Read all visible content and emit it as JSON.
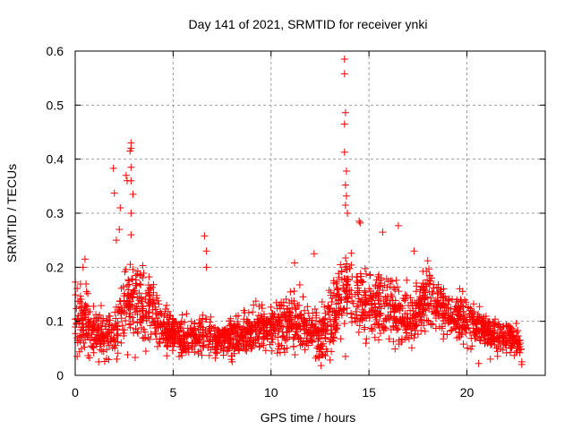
{
  "chart_data": {
    "type": "scatter",
    "title": "Day 141 of 2021, SRMTID for receiver ynki",
    "xlabel": "GPS time / hours",
    "ylabel": "SRMTID / TECUs",
    "xlim": [
      0,
      24
    ],
    "ylim": [
      0,
      0.6
    ],
    "xticks": [
      0,
      5,
      10,
      15,
      20
    ],
    "xtick_labels": [
      "0",
      "5",
      "10",
      "15",
      "20"
    ],
    "yticks": [
      0,
      0.1,
      0.2,
      0.3,
      0.4,
      0.5,
      0.6
    ],
    "ytick_labels": [
      "0",
      "0.1",
      "0.2",
      "0.3",
      "0.4",
      "0.5",
      "0.6"
    ],
    "grid": true,
    "legend": "none",
    "marker": "plus",
    "series": [
      {
        "name": "SRMTID",
        "color": "#ff0000",
        "x_range": [
          0,
          22.8
        ],
        "envelope": {
          "x": [
            0,
            0.5,
            1,
            1.5,
            2,
            2.5,
            3,
            3.5,
            4,
            4.5,
            5,
            5.5,
            6,
            6.5,
            7,
            7.5,
            8,
            8.5,
            9,
            9.5,
            10,
            10.5,
            11,
            11.5,
            12,
            12.5,
            13,
            13.5,
            14,
            14.5,
            15,
            15.5,
            16,
            16.5,
            17,
            17.5,
            18,
            18.5,
            19,
            19.5,
            20,
            20.5,
            21,
            21.5,
            22,
            22.5,
            22.8
          ],
          "median": [
            0.12,
            0.1,
            0.08,
            0.07,
            0.08,
            0.12,
            0.14,
            0.13,
            0.11,
            0.09,
            0.08,
            0.07,
            0.075,
            0.08,
            0.065,
            0.065,
            0.07,
            0.075,
            0.08,
            0.085,
            0.09,
            0.095,
            0.1,
            0.095,
            0.085,
            0.07,
            0.1,
            0.14,
            0.15,
            0.14,
            0.12,
            0.14,
            0.13,
            0.11,
            0.1,
            0.12,
            0.14,
            0.13,
            0.115,
            0.11,
            0.1,
            0.09,
            0.08,
            0.075,
            0.07,
            0.065,
            0.04
          ],
          "spread": [
            0.05,
            0.05,
            0.035,
            0.03,
            0.035,
            0.06,
            0.07,
            0.05,
            0.045,
            0.035,
            0.03,
            0.028,
            0.03,
            0.035,
            0.025,
            0.025,
            0.03,
            0.03,
            0.03,
            0.035,
            0.035,
            0.04,
            0.04,
            0.045,
            0.04,
            0.035,
            0.05,
            0.06,
            0.06,
            0.055,
            0.05,
            0.055,
            0.05,
            0.045,
            0.04,
            0.045,
            0.045,
            0.04,
            0.035,
            0.035,
            0.035,
            0.03,
            0.03,
            0.028,
            0.025,
            0.025,
            0.015
          ]
        },
        "notable_points": [
          [
            2.85,
            0.43
          ],
          [
            2.85,
            0.42
          ],
          [
            2.8,
            0.415
          ],
          [
            2.85,
            0.385
          ],
          [
            1.95,
            0.383
          ],
          [
            2.6,
            0.37
          ],
          [
            2.65,
            0.36
          ],
          [
            2.85,
            0.36
          ],
          [
            2.0,
            0.337
          ],
          [
            2.95,
            0.335
          ],
          [
            2.3,
            0.31
          ],
          [
            2.85,
            0.3
          ],
          [
            2.25,
            0.27
          ],
          [
            2.85,
            0.26
          ],
          [
            2.1,
            0.25
          ],
          [
            0.5,
            0.215
          ],
          [
            0.4,
            0.2
          ],
          [
            6.6,
            0.258
          ],
          [
            6.7,
            0.23
          ],
          [
            6.7,
            0.2
          ],
          [
            13.75,
            0.585
          ],
          [
            13.75,
            0.558
          ],
          [
            13.8,
            0.486
          ],
          [
            13.75,
            0.465
          ],
          [
            13.75,
            0.413
          ],
          [
            13.85,
            0.378
          ],
          [
            13.8,
            0.352
          ],
          [
            13.85,
            0.332
          ],
          [
            13.8,
            0.315
          ],
          [
            13.9,
            0.3
          ],
          [
            14.5,
            0.285
          ],
          [
            14.55,
            0.282
          ],
          [
            15.7,
            0.265
          ],
          [
            16.5,
            0.277
          ],
          [
            17.3,
            0.23
          ],
          [
            18.0,
            0.212
          ],
          [
            12.2,
            0.225
          ],
          [
            11.2,
            0.208
          ],
          [
            22.8,
            0.02
          ],
          [
            22.8,
            0.025
          ],
          [
            20.6,
            0.022
          ],
          [
            21.2,
            0.03
          ],
          [
            13.8,
            0.035
          ],
          [
            0.1,
            0.035
          ],
          [
            1.2,
            0.025
          ]
        ]
      }
    ]
  }
}
